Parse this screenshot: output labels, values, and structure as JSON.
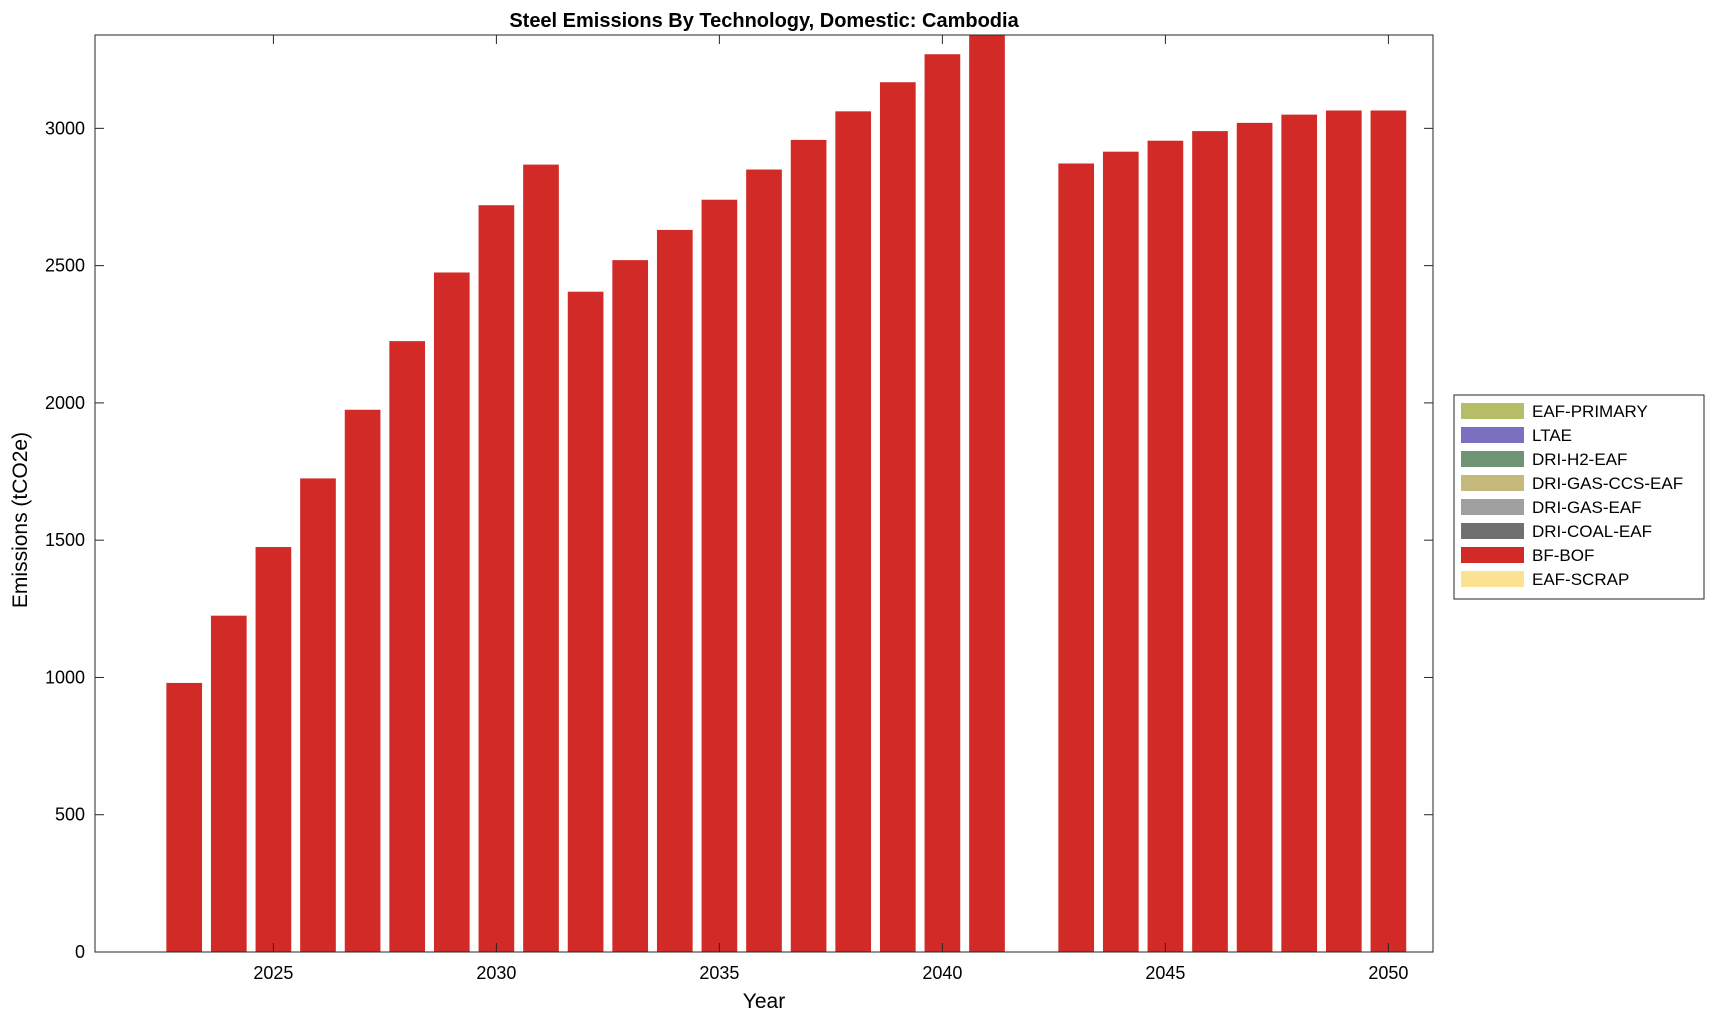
{
  "chart_data": {
    "type": "bar",
    "stacked": true,
    "title": "Steel Emissions By Technology, Domestic: Cambodia",
    "xlabel": "Year",
    "ylabel": "Emissions (tCO2e)",
    "xlim": [
      2021,
      2051
    ],
    "ylim": [
      0,
      3340
    ],
    "xticks": [
      2025,
      2030,
      2035,
      2040,
      2045,
      2050
    ],
    "yticks": [
      0,
      500,
      1000,
      1500,
      2000,
      2500,
      3000
    ],
    "grid": false,
    "legend_position": "outside-right",
    "x": [
      2023,
      2024,
      2025,
      2026,
      2027,
      2028,
      2029,
      2030,
      2031,
      2032,
      2033,
      2034,
      2035,
      2036,
      2037,
      2038,
      2039,
      2040,
      2041,
      2043,
      2044,
      2045,
      2046,
      2047,
      2048,
      2049,
      2050
    ],
    "series": [
      {
        "name": "EAF-PRIMARY",
        "color": "#b5be66",
        "values": [
          0,
          0,
          0,
          0,
          0,
          0,
          0,
          0,
          0,
          0,
          0,
          0,
          0,
          0,
          0,
          0,
          0,
          0,
          0,
          0,
          0,
          0,
          0,
          0,
          0,
          0,
          0
        ]
      },
      {
        "name": "LTAE",
        "color": "#7b70c0",
        "values": [
          0,
          0,
          0,
          0,
          0,
          0,
          0,
          0,
          0,
          0,
          0,
          0,
          0,
          0,
          0,
          0,
          0,
          0,
          0,
          0,
          0,
          0,
          0,
          0,
          0,
          0,
          0
        ]
      },
      {
        "name": "DRI-H2-EAF",
        "color": "#6e9474",
        "values": [
          0,
          0,
          0,
          0,
          0,
          0,
          0,
          0,
          0,
          0,
          0,
          0,
          0,
          0,
          0,
          0,
          0,
          0,
          0,
          0,
          0,
          0,
          0,
          0,
          0,
          0,
          0
        ]
      },
      {
        "name": "DRI-GAS-CCS-EAF",
        "color": "#c5b97c",
        "values": [
          0,
          0,
          0,
          0,
          0,
          0,
          0,
          0,
          0,
          0,
          0,
          0,
          0,
          0,
          0,
          0,
          0,
          0,
          0,
          0,
          0,
          0,
          0,
          0,
          0,
          0,
          0
        ]
      },
      {
        "name": "DRI-GAS-EAF",
        "color": "#a0a0a0",
        "values": [
          0,
          0,
          0,
          0,
          0,
          0,
          0,
          0,
          0,
          0,
          0,
          0,
          0,
          0,
          0,
          0,
          0,
          0,
          0,
          0,
          0,
          0,
          0,
          0,
          0,
          0,
          0
        ]
      },
      {
        "name": "DRI-COAL-EAF",
        "color": "#707070",
        "values": [
          0,
          0,
          0,
          0,
          0,
          0,
          0,
          0,
          0,
          0,
          0,
          0,
          0,
          0,
          0,
          0,
          0,
          0,
          0,
          0,
          0,
          0,
          0,
          0,
          0,
          0,
          0
        ]
      },
      {
        "name": "BF-BOF",
        "color": "#d22a27",
        "values": [
          980,
          1225,
          1475,
          1725,
          1975,
          2225,
          2475,
          2720,
          2868,
          2405,
          2520,
          2630,
          2740,
          2850,
          2958,
          3062,
          3168,
          3270,
          3340,
          2872,
          2915,
          2955,
          2990,
          3020,
          3050,
          3065,
          3065
        ]
      },
      {
        "name": "EAF-SCRAP",
        "color": "#fce394",
        "values": [
          0,
          0,
          0,
          0,
          0,
          0,
          0,
          0,
          0,
          0,
          0,
          0,
          0,
          0,
          0,
          0,
          0,
          0,
          0,
          0,
          0,
          0,
          0,
          0,
          0,
          0,
          0
        ]
      }
    ]
  }
}
